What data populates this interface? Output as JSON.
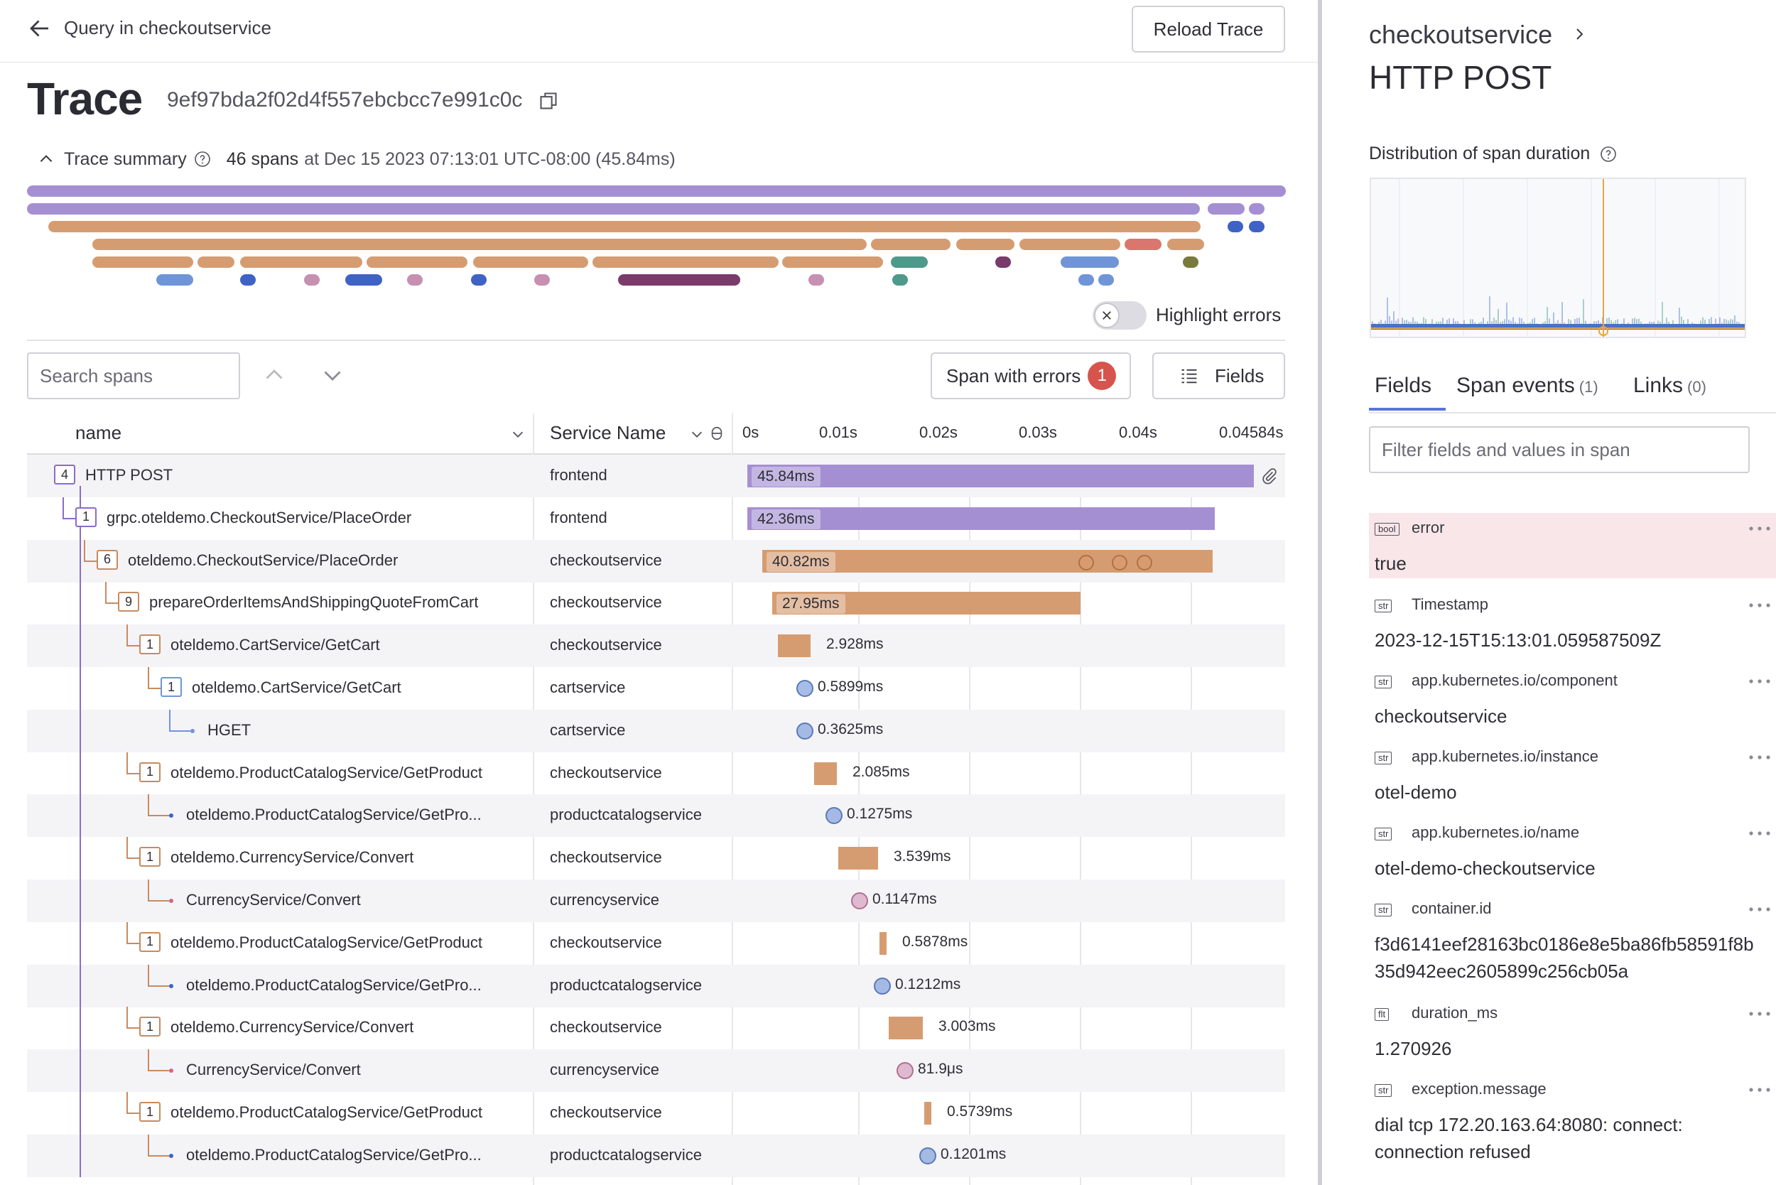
{
  "header": {
    "back_label": "Query in checkoutservice",
    "reload_label": "Reload Trace",
    "title": "Trace",
    "trace_id": "9ef97bda2f02d4f557ebcbcc7e991c0c"
  },
  "summary": {
    "label": "Trace summary",
    "count": "46 spans",
    "rest": "at Dec 15 2023 07:13:01 UTC-08:00 (45.84ms)"
  },
  "highlight_errors_label": "Highlight errors",
  "toolbar": {
    "search_placeholder": "Search spans",
    "errors_label": "Span with errors",
    "errors_count": "1",
    "fields_label": "Fields"
  },
  "table": {
    "col_name": "name",
    "col_service": "Service Name",
    "ticks": [
      "0s",
      "0.01s",
      "0.02s",
      "0.03s",
      "0.04s",
      "0.04584s"
    ]
  },
  "spans": [
    {
      "name": "HTTP POST",
      "service": "frontend",
      "duration": "45.84ms",
      "count": "4",
      "depth": 0
    },
    {
      "name": "grpc.oteldemo.CheckoutService/PlaceOrder",
      "service": "frontend",
      "duration": "42.36ms",
      "count": "1",
      "depth": 1
    },
    {
      "name": "oteldemo.CheckoutService/PlaceOrder",
      "service": "checkoutservice",
      "duration": "40.82ms",
      "count": "6",
      "depth": 2
    },
    {
      "name": "prepareOrderItemsAndShippingQuoteFromCart",
      "service": "checkoutservice",
      "duration": "27.95ms",
      "count": "9",
      "depth": 3
    },
    {
      "name": "oteldemo.CartService/GetCart",
      "service": "checkoutservice",
      "duration": "2.928ms",
      "count": "1",
      "depth": 4
    },
    {
      "name": "oteldemo.CartService/GetCart",
      "service": "cartservice",
      "duration": "0.5899ms",
      "count": "1",
      "depth": 5
    },
    {
      "name": "HGET",
      "service": "cartservice",
      "duration": "0.3625ms",
      "count": "",
      "depth": 6
    },
    {
      "name": "oteldemo.ProductCatalogService/GetProduct",
      "service": "checkoutservice",
      "duration": "2.085ms",
      "count": "1",
      "depth": 4
    },
    {
      "name": "oteldemo.ProductCatalogService/GetPro...",
      "service": "productcatalogservice",
      "duration": "0.1275ms",
      "count": "",
      "depth": 5
    },
    {
      "name": "oteldemo.CurrencyService/Convert",
      "service": "checkoutservice",
      "duration": "3.539ms",
      "count": "1",
      "depth": 4
    },
    {
      "name": "CurrencyService/Convert",
      "service": "currencyservice",
      "duration": "0.1147ms",
      "count": "",
      "depth": 5
    },
    {
      "name": "oteldemo.ProductCatalogService/GetProduct",
      "service": "checkoutservice",
      "duration": "0.5878ms",
      "count": "1",
      "depth": 4
    },
    {
      "name": "oteldemo.ProductCatalogService/GetPro...",
      "service": "productcatalogservice",
      "duration": "0.1212ms",
      "count": "",
      "depth": 5
    },
    {
      "name": "oteldemo.CurrencyService/Convert",
      "service": "checkoutservice",
      "duration": "3.003ms",
      "count": "1",
      "depth": 4
    },
    {
      "name": "CurrencyService/Convert",
      "service": "currencyservice",
      "duration": "81.9μs",
      "count": "",
      "depth": 5
    },
    {
      "name": "oteldemo.ProductCatalogService/GetProduct",
      "service": "checkoutservice",
      "duration": "0.5739ms",
      "count": "1",
      "depth": 4
    },
    {
      "name": "oteldemo.ProductCatalogService/GetPro...",
      "service": "productcatalogservice",
      "duration": "0.1201ms",
      "count": "",
      "depth": 5
    }
  ],
  "detail": {
    "service": "checkoutservice",
    "operation": "HTTP POST",
    "dist_label": "Distribution of span duration",
    "tabs": [
      {
        "label": "Fields",
        "sub": ""
      },
      {
        "label": "Span events",
        "sub": "(1)"
      },
      {
        "label": "Links",
        "sub": "(0)"
      }
    ],
    "filter_placeholder": "Filter fields and values in span",
    "fields": [
      {
        "type": "bool",
        "key": "error",
        "value": "true"
      },
      {
        "type": "str",
        "key": "Timestamp",
        "value": "2023-12-15T15:13:01.059587509Z"
      },
      {
        "type": "str",
        "key": "app.kubernetes.io/component",
        "value": "checkoutservice"
      },
      {
        "type": "str",
        "key": "app.kubernetes.io/instance",
        "value": "otel-demo"
      },
      {
        "type": "str",
        "key": "app.kubernetes.io/name",
        "value": "otel-demo-checkoutservice"
      },
      {
        "type": "str",
        "key": "container.id",
        "value": "f3d6141eef28163bc0186e8e5ba86fb58591f8b35d942eec2605899c256cb05a"
      },
      {
        "type": "flt",
        "key": "duration_ms",
        "value": "1.270926"
      },
      {
        "type": "str",
        "key": "exception.message",
        "value": "dial tcp 172.20.163.64:8080: connect: connection refused"
      }
    ]
  },
  "colors": {
    "purple": "#a58fd3",
    "orange": "#d69c71",
    "blue": "#6f95d8",
    "pink": "#c790b0",
    "accent": "#5a74d8",
    "error": "#d6544d"
  }
}
